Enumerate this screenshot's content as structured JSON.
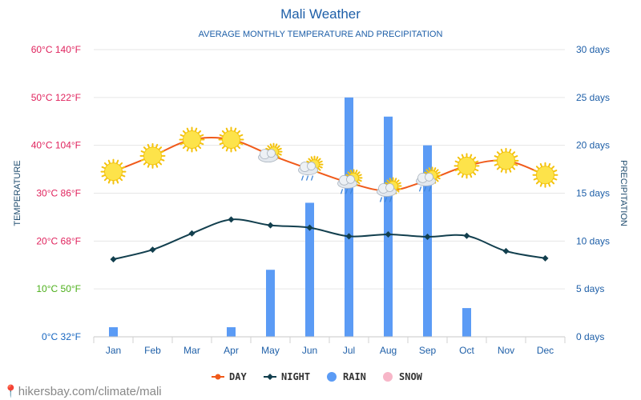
{
  "title": "Mali Weather",
  "subtitle": "AVERAGE MONTHLY TEMPERATURE AND PRECIPITATION",
  "footer": "hikersbay.com/climate/mali",
  "colors": {
    "title": "#1e5fa8",
    "day": "#f05a1a",
    "night": "#123f4e",
    "rain": "#5b9bf5",
    "snow": "#f7b6c8",
    "right_axis": "#1e5fa8",
    "grid": "#e6e6e6"
  },
  "chart_data": {
    "type": "bar+line",
    "categories": [
      "Jan",
      "Feb",
      "Mar",
      "Apr",
      "May",
      "Jun",
      "Jul",
      "Aug",
      "Sep",
      "Oct",
      "Nov",
      "Dec"
    ],
    "left_axis": {
      "label": "TEMPERATURE",
      "range_celsius": [
        0,
        60
      ],
      "ticks": [
        {
          "label": "0°C 32°F",
          "value": 0,
          "color": "#1565c0"
        },
        {
          "label": "10°C 50°F",
          "value": 10,
          "color": "#4caf1a"
        },
        {
          "label": "20°C 68°F",
          "value": 20,
          "color": "#e0245e"
        },
        {
          "label": "30°C 86°F",
          "value": 30,
          "color": "#e0245e"
        },
        {
          "label": "40°C 104°F",
          "value": 40,
          "color": "#e0245e"
        },
        {
          "label": "50°C 122°F",
          "value": 50,
          "color": "#e0245e"
        },
        {
          "label": "60°C 140°F",
          "value": 60,
          "color": "#e0245e"
        }
      ]
    },
    "right_axis": {
      "label": "PRECIPITATION",
      "range_days": [
        0,
        30
      ],
      "ticks": [
        {
          "label": "0 days",
          "value": 0
        },
        {
          "label": "5 days",
          "value": 5
        },
        {
          "label": "10 days",
          "value": 10
        },
        {
          "label": "15 days",
          "value": 15
        },
        {
          "label": "20 days",
          "value": 20
        },
        {
          "label": "25 days",
          "value": 25
        },
        {
          "label": "30 days",
          "value": 30
        }
      ]
    },
    "series": [
      {
        "name": "DAY",
        "type": "line",
        "axis": "left",
        "values": [
          34.5,
          37.8,
          41.2,
          41.2,
          38.0,
          35.0,
          32.2,
          30.5,
          32.7,
          35.7,
          36.8,
          33.8
        ]
      },
      {
        "name": "NIGHT",
        "type": "line",
        "axis": "left",
        "values": [
          16.2,
          18.2,
          21.6,
          24.5,
          23.3,
          22.8,
          21.0,
          21.4,
          20.9,
          21.1,
          17.9,
          16.4
        ]
      },
      {
        "name": "RAIN",
        "type": "bar",
        "axis": "right",
        "values": [
          1,
          0,
          0,
          1,
          7,
          14,
          25,
          23,
          20,
          3,
          0,
          0
        ]
      },
      {
        "name": "SNOW",
        "type": "bar",
        "axis": "right",
        "values": [
          0,
          0,
          0,
          0,
          0,
          0,
          0,
          0,
          0,
          0,
          0,
          0
        ]
      }
    ],
    "weather_icons": [
      "sun-icon",
      "sun-icon",
      "sun-icon",
      "sun-icon",
      "sun-cloud-icon",
      "sun-cloud-rain-icon",
      "sun-cloud-rain-icon",
      "sun-cloud-rain-icon",
      "sun-cloud-rain-icon",
      "sun-icon",
      "sun-icon",
      "sun-icon"
    ],
    "legend": [
      "DAY",
      "NIGHT",
      "RAIN",
      "SNOW"
    ],
    "legend_position": "bottom",
    "grid": true
  }
}
